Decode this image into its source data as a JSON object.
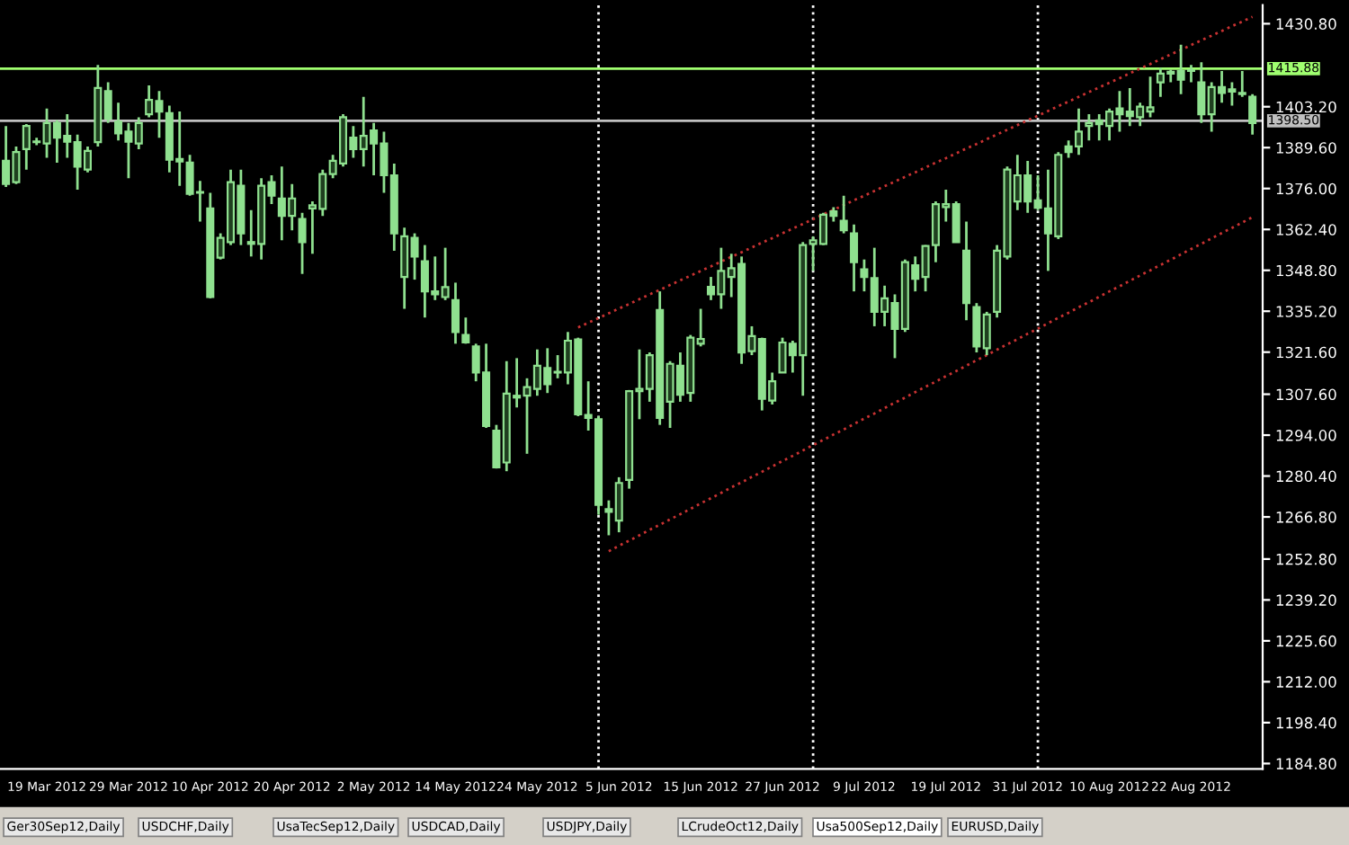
{
  "chart_data": {
    "type": "candlestick",
    "categories": [
      null,
      null,
      null,
      null,
      "19 Mar 2012",
      null,
      null,
      null,
      null,
      null,
      null,
      null,
      "29 Mar 2012",
      null,
      null,
      null,
      null,
      null,
      null,
      null,
      "10 Apr 2012",
      null,
      null,
      null,
      null,
      null,
      null,
      null,
      "20 Apr 2012",
      null,
      null,
      null,
      null,
      null,
      null,
      null,
      "2 May 2012",
      null,
      null,
      null,
      null,
      null,
      null,
      null,
      "14 May 2012",
      null,
      null,
      null,
      null,
      null,
      null,
      null,
      "24 May 2012",
      null,
      null,
      null,
      null,
      null,
      null,
      null,
      "5 Jun 2012",
      null,
      null,
      null,
      null,
      null,
      null,
      null,
      "15 Jun 2012",
      null,
      null,
      null,
      null,
      null,
      null,
      null,
      "27 Jun 2012",
      null,
      null,
      null,
      null,
      null,
      null,
      null,
      "9 Jul 2012",
      null,
      null,
      null,
      null,
      null,
      null,
      null,
      "19 Jul 2012",
      null,
      null,
      null,
      null,
      null,
      null,
      null,
      "31 Jul 2012",
      null,
      null,
      null,
      null,
      null,
      null,
      null,
      "10 Aug 2012",
      null,
      null,
      null,
      null,
      null,
      null,
      null,
      "22 Aug 2012",
      null,
      null,
      null,
      null,
      null,
      null
    ],
    "color": "#8fe08f",
    "ohlc": [
      [
        1385.2,
        1396.8,
        1376.5,
        1377.5
      ],
      [
        1378.1,
        1390.0,
        1377.5,
        1388.1
      ],
      [
        1389.1,
        1397.4,
        1382.3,
        1396.8
      ],
      [
        1391.4,
        1392.9,
        1390.4,
        1391.4
      ],
      [
        1391.0,
        1402.6,
        1386.2,
        1397.8
      ],
      [
        1397.8,
        1398.7,
        1384.6,
        1392.9
      ],
      [
        1393.5,
        1400.7,
        1386.2,
        1391.6
      ],
      [
        1391.4,
        1393.9,
        1375.6,
        1383.3
      ],
      [
        1382.3,
        1390.0,
        1381.4,
        1388.5
      ],
      [
        1391.4,
        1417.1,
        1390.0,
        1409.4
      ],
      [
        1408.4,
        1411.3,
        1397.8,
        1399.3
      ],
      [
        1398.2,
        1404.5,
        1392.0,
        1394.3
      ],
      [
        1394.9,
        1397.8,
        1379.4,
        1391.6
      ],
      [
        1391.0,
        1399.7,
        1389.1,
        1397.8
      ],
      [
        1400.7,
        1410.3,
        1399.7,
        1405.5
      ],
      [
        1405.1,
        1408.4,
        1392.9,
        1401.6
      ],
      [
        1401.1,
        1403.6,
        1381.4,
        1385.6
      ],
      [
        1385.8,
        1401.6,
        1376.9,
        1385.0
      ],
      [
        1384.6,
        1387.2,
        1373.6,
        1374.2
      ],
      [
        1374.6,
        1378.5,
        1365.0,
        1374.6
      ],
      [
        1369.4,
        1374.6,
        1339.5,
        1339.9
      ],
      [
        1353.0,
        1361.1,
        1352.4,
        1359.6
      ],
      [
        1358.2,
        1382.3,
        1357.2,
        1378.1
      ],
      [
        1376.9,
        1382.3,
        1357.2,
        1361.1
      ],
      [
        1358.2,
        1368.8,
        1353.4,
        1357.6
      ],
      [
        1357.6,
        1379.4,
        1352.4,
        1376.9
      ],
      [
        1378.1,
        1380.4,
        1370.8,
        1373.6
      ],
      [
        1372.7,
        1383.3,
        1358.8,
        1366.9
      ],
      [
        1366.9,
        1377.5,
        1362.1,
        1372.7
      ],
      [
        1365.9,
        1367.9,
        1347.6,
        1358.2
      ],
      [
        1369.4,
        1371.7,
        1354.3,
        1370.4
      ],
      [
        1369.2,
        1382.3,
        1366.9,
        1380.8
      ],
      [
        1380.8,
        1387.2,
        1379.4,
        1385.2
      ],
      [
        1384.3,
        1400.7,
        1383.3,
        1399.7
      ],
      [
        1392.9,
        1396.8,
        1386.2,
        1389.1
      ],
      [
        1389.1,
        1406.5,
        1383.3,
        1393.5
      ],
      [
        1395.3,
        1397.8,
        1380.4,
        1391.0
      ],
      [
        1391.0,
        1394.9,
        1374.6,
        1380.4
      ],
      [
        1380.4,
        1384.3,
        1355.3,
        1361.1
      ],
      [
        1346.6,
        1363.0,
        1336.0,
        1360.1
      ],
      [
        1359.6,
        1361.1,
        1345.7,
        1353.4
      ],
      [
        1351.8,
        1357.2,
        1333.1,
        1341.8
      ],
      [
        1341.8,
        1353.4,
        1338.9,
        1340.8
      ],
      [
        1339.9,
        1356.3,
        1338.9,
        1343.2
      ],
      [
        1338.9,
        1344.7,
        1324.4,
        1328.3
      ],
      [
        1327.3,
        1333.1,
        1324.4,
        1324.8
      ],
      [
        1323.5,
        1324.4,
        1311.9,
        1314.8
      ],
      [
        1314.8,
        1324.4,
        1296.4,
        1297.0
      ],
      [
        1295.5,
        1297.4,
        1282.9,
        1283.3
      ],
      [
        1284.9,
        1318.6,
        1282.0,
        1307.8
      ],
      [
        1307.1,
        1319.6,
        1303.2,
        1306.5
      ],
      [
        1307.1,
        1312.9,
        1287.8,
        1310.0
      ],
      [
        1309.4,
        1322.5,
        1307.1,
        1317.1
      ],
      [
        1316.3,
        1322.9,
        1308.0,
        1310.9
      ],
      [
        1314.8,
        1320.6,
        1312.9,
        1314.8
      ],
      [
        1314.8,
        1328.3,
        1310.9,
        1325.4
      ],
      [
        1325.8,
        1326.4,
        1300.3,
        1300.9
      ],
      [
        1300.7,
        1311.9,
        1295.5,
        1299.7
      ],
      [
        1299.3,
        1300.3,
        1267.5,
        1270.8
      ],
      [
        1269.4,
        1272.3,
        1260.7,
        1268.5
      ],
      [
        1265.6,
        1280.0,
        1261.7,
        1278.1
      ],
      [
        1279.1,
        1309.0,
        1276.2,
        1308.6
      ],
      [
        1308.6,
        1322.5,
        1299.3,
        1309.4
      ],
      [
        1309.4,
        1321.5,
        1305.1,
        1320.6
      ],
      [
        1335.6,
        1341.8,
        1297.4,
        1299.7
      ],
      [
        1305.1,
        1318.6,
        1296.4,
        1317.7
      ],
      [
        1317.1,
        1321.5,
        1305.1,
        1307.4
      ],
      [
        1308.0,
        1327.3,
        1305.1,
        1326.4
      ],
      [
        1324.4,
        1336.0,
        1323.5,
        1326.0
      ],
      [
        1343.3,
        1346.6,
        1338.9,
        1340.8
      ],
      [
        1340.8,
        1356.3,
        1336.0,
        1348.6
      ],
      [
        1346.6,
        1354.3,
        1339.9,
        1349.5
      ],
      [
        1350.9,
        1353.4,
        1317.7,
        1321.5
      ],
      [
        1321.9,
        1330.2,
        1320.6,
        1326.9
      ],
      [
        1326.0,
        1326.4,
        1302.2,
        1306.1
      ],
      [
        1305.5,
        1314.8,
        1304.2,
        1311.9
      ],
      [
        1314.8,
        1326.4,
        1314.8,
        1324.8
      ],
      [
        1324.4,
        1325.4,
        1314.8,
        1320.6
      ],
      [
        1320.6,
        1358.2,
        1307.1,
        1357.2
      ],
      [
        1357.6,
        1360.1,
        1348.6,
        1358.8
      ],
      [
        1357.6,
        1367.9,
        1357.2,
        1367.3
      ],
      [
        1368.4,
        1369.8,
        1365.0,
        1366.9
      ],
      [
        1365.3,
        1373.6,
        1361.1,
        1362.1
      ],
      [
        1361.1,
        1364.0,
        1341.8,
        1351.5
      ],
      [
        1349.1,
        1352.4,
        1341.8,
        1346.6
      ],
      [
        1346.2,
        1356.3,
        1330.2,
        1335.0
      ],
      [
        1335.0,
        1343.7,
        1330.2,
        1339.5
      ],
      [
        1337.9,
        1340.8,
        1319.6,
        1329.3
      ],
      [
        1329.3,
        1352.4,
        1328.3,
        1351.5
      ],
      [
        1350.5,
        1353.4,
        1341.8,
        1346.0
      ],
      [
        1346.6,
        1357.2,
        1341.8,
        1356.9
      ],
      [
        1357.2,
        1371.7,
        1351.5,
        1370.8
      ],
      [
        1369.8,
        1375.6,
        1365.0,
        1370.8
      ],
      [
        1370.8,
        1371.7,
        1358.2,
        1358.2
      ],
      [
        1355.3,
        1365.0,
        1332.2,
        1337.9
      ],
      [
        1336.6,
        1337.9,
        1321.5,
        1323.5
      ],
      [
        1322.9,
        1335.0,
        1320.6,
        1334.1
      ],
      [
        1335.0,
        1357.2,
        1333.1,
        1355.3
      ],
      [
        1353.4,
        1383.3,
        1352.4,
        1382.3
      ],
      [
        1371.7,
        1387.2,
        1368.8,
        1380.4
      ],
      [
        1380.4,
        1385.2,
        1367.9,
        1371.7
      ],
      [
        1372.1,
        1380.4,
        1368.8,
        1369.6
      ],
      [
        1369.4,
        1382.3,
        1348.6,
        1361.1
      ],
      [
        1360.1,
        1388.1,
        1359.2,
        1387.2
      ],
      [
        1390.0,
        1392.0,
        1386.2,
        1388.1
      ],
      [
        1390.0,
        1402.6,
        1387.2,
        1394.9
      ],
      [
        1396.8,
        1400.7,
        1392.0,
        1397.8
      ],
      [
        1398.7,
        1400.7,
        1392.0,
        1397.4
      ],
      [
        1396.8,
        1402.6,
        1392.0,
        1401.6
      ],
      [
        1402.6,
        1408.4,
        1394.9,
        1400.7
      ],
      [
        1401.6,
        1409.4,
        1396.8,
        1400.1
      ],
      [
        1399.7,
        1404.5,
        1396.8,
        1403.2
      ],
      [
        1401.6,
        1413.2,
        1399.7,
        1403.0
      ],
      [
        1411.3,
        1416.1,
        1406.5,
        1414.2
      ],
      [
        1414.8,
        1415.5,
        1411.3,
        1414.2
      ],
      [
        1415.1,
        1423.8,
        1407.4,
        1412.2
      ],
      [
        1415.1,
        1417.1,
        1411.3,
        1415.1
      ],
      [
        1411.3,
        1418.0,
        1397.8,
        1400.7
      ],
      [
        1400.7,
        1411.3,
        1394.9,
        1409.7
      ],
      [
        1409.7,
        1415.1,
        1404.5,
        1407.8
      ],
      [
        1409.0,
        1411.3,
        1403.6,
        1408.2
      ],
      [
        1407.8,
        1415.1,
        1406.5,
        1407.4
      ],
      [
        1406.5,
        1407.4,
        1393.9,
        1397.8
      ]
    ],
    "series": [
      {
        "type": "line",
        "color": "#c83232",
        "line_style": "dotted",
        "values": [
          null,
          null,
          null,
          null,
          null,
          null,
          null,
          null,
          null,
          null,
          null,
          null,
          null,
          null,
          null,
          null,
          null,
          null,
          null,
          null,
          null,
          null,
          null,
          null,
          null,
          null,
          null,
          null,
          null,
          null,
          null,
          null,
          null,
          null,
          null,
          null,
          null,
          null,
          null,
          null,
          null,
          null,
          null,
          null,
          null,
          null,
          null,
          null,
          null,
          null,
          null,
          null,
          null,
          null,
          null,
          null,
          1329.8,
          1331.4,
          1332.9,
          1334.5,
          1336.1,
          1337.6,
          1339.2,
          1340.8,
          1342.3,
          1343.9,
          1345.5,
          1347.0,
          1348.6,
          1350.1,
          1351.7,
          1353.3,
          1354.8,
          1356.4,
          1358.0,
          1359.5,
          1361.1,
          1362.7,
          1364.2,
          1365.8,
          1367.4,
          1368.9,
          1370.5,
          1372.1,
          1373.6,
          1375.2,
          1376.8,
          1378.3,
          1379.9,
          1381.4,
          1383.0,
          1384.6,
          1386.1,
          1387.7,
          1389.3,
          1390.8,
          1392.4,
          1394.0,
          1395.5,
          1397.1,
          1398.7,
          1400.2,
          1401.8,
          1403.4,
          1404.9,
          1406.5,
          1408.1,
          1409.6,
          1411.2,
          1412.7,
          1414.3,
          1415.9,
          1417.4,
          1419.0,
          1420.6,
          1422.1,
          1423.7,
          1425.3,
          1426.8,
          1428.4,
          1430.0,
          1431.5,
          1433.1
        ]
      },
      {
        "type": "line",
        "color": "#c83232",
        "line_style": "dotted",
        "values": [
          null,
          null,
          null,
          null,
          null,
          null,
          null,
          null,
          null,
          null,
          null,
          null,
          null,
          null,
          null,
          null,
          null,
          null,
          null,
          null,
          null,
          null,
          null,
          null,
          null,
          null,
          null,
          null,
          null,
          null,
          null,
          null,
          null,
          null,
          null,
          null,
          null,
          null,
          null,
          null,
          null,
          null,
          null,
          null,
          null,
          null,
          null,
          null,
          null,
          null,
          null,
          null,
          null,
          null,
          null,
          null,
          null,
          null,
          null,
          1255.4,
          1257.2,
          1258.9,
          1260.7,
          1262.5,
          1264.2,
          1266.0,
          1267.7,
          1269.5,
          1271.3,
          1273.0,
          1274.8,
          1276.6,
          1278.3,
          1280.1,
          1281.8,
          1283.6,
          1285.4,
          1287.1,
          1288.9,
          1290.7,
          1292.4,
          1294.2,
          1295.9,
          1297.7,
          1299.5,
          1301.2,
          1303.0,
          1304.8,
          1306.5,
          1308.3,
          1310.1,
          1311.8,
          1313.6,
          1315.3,
          1317.1,
          1318.9,
          1320.6,
          1322.4,
          1324.2,
          1325.9,
          1327.7,
          1329.4,
          1331.2,
          1333.0,
          1334.7,
          1336.5,
          1338.2,
          1340.0,
          1341.8,
          1343.5,
          1345.3,
          1347.1,
          1348.8,
          1350.6,
          1352.3,
          1354.1,
          1355.9,
          1357.6,
          1359.4,
          1361.2,
          1362.9,
          1364.7,
          1366.5
        ]
      }
    ],
    "ylim": [
      1183.0,
      1437.0
    ],
    "yticks": [
      {
        "value": 1430.8,
        "label": "1430.80"
      },
      {
        "value": 1403.2,
        "label": "1403.20"
      },
      {
        "value": 1389.6,
        "label": "1389.60"
      },
      {
        "value": 1376.0,
        "label": "1376.00"
      },
      {
        "value": 1362.4,
        "label": "1362.40"
      },
      {
        "value": 1348.8,
        "label": "1348.80"
      },
      {
        "value": 1335.2,
        "label": "1335.20"
      },
      {
        "value": 1321.6,
        "label": "1321.60"
      },
      {
        "value": 1307.6,
        "label": "1307.60"
      },
      {
        "value": 1294.0,
        "label": "1294.00"
      },
      {
        "value": 1280.4,
        "label": "1280.40"
      },
      {
        "value": 1266.8,
        "label": "1266.80"
      },
      {
        "value": 1252.8,
        "label": "1252.80"
      },
      {
        "value": 1239.2,
        "label": "1239.20"
      },
      {
        "value": 1225.6,
        "label": "1225.60"
      },
      {
        "value": 1212.0,
        "label": "1212.00"
      },
      {
        "value": 1198.4,
        "label": "1198.40"
      },
      {
        "value": 1184.8,
        "label": "1184.80"
      }
    ],
    "ref_lines": [
      {
        "axis": "y",
        "value": 1415.88,
        "label": "1415.88",
        "color": "#a0ff70",
        "line_style": "solid"
      },
      {
        "axis": "y",
        "value": 1398.5,
        "label": "1398.50",
        "color": "#c0c0c0",
        "line_style": "solid"
      }
    ],
    "annotations": [
      "Ger30Sep12,Daily",
      "USDCHF,Daily",
      "UsaTecSep12,Daily",
      "USDCAD,Daily",
      "USDJPY,Daily",
      "LCrudeOct12,Daily",
      "Usa500Sep12,Daily",
      "EURUSD,Daily"
    ],
    "grid": false,
    "legend": false
  }
}
